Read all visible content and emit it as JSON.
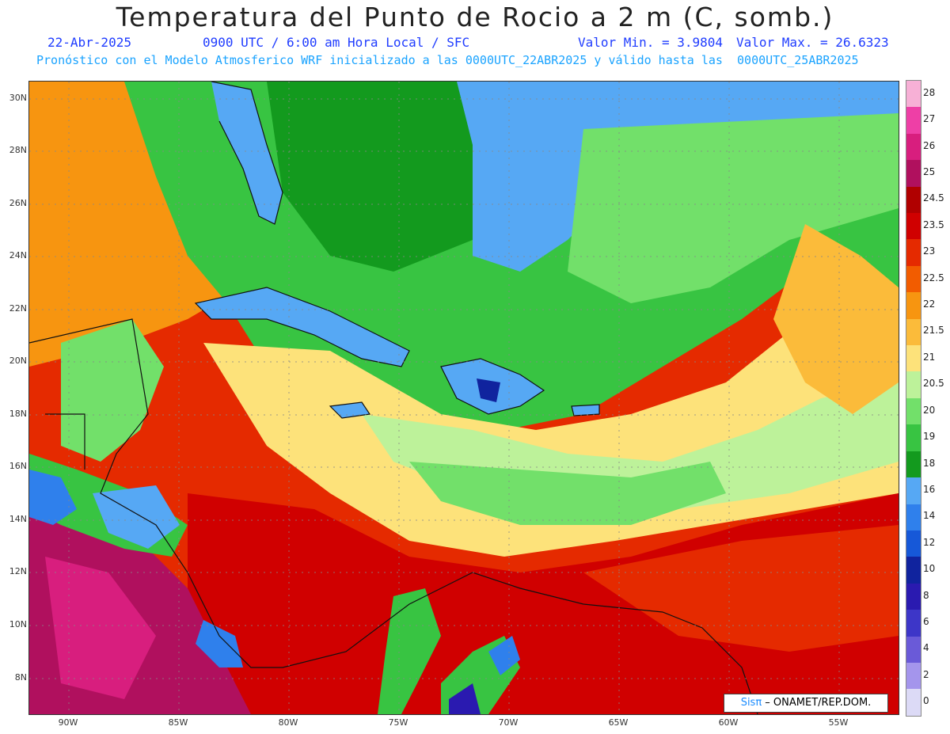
{
  "title": "Temperatura del Punto de Rocio a 2 m (C, somb.)",
  "date": "22-Abr-2025",
  "time": "0900 UTC / 6:00 am Hora Local / SFC",
  "min_label": "Valor Min. = 3.9804",
  "max_label": "Valor Max. = 26.6323",
  "model_line": "Pronóstico con el Modelo Atmosferico WRF inicializado a las 0000UTC_22ABR2025 y válido hasta las  0000UTC_25ABR2025",
  "lat_labels": [
    "30N",
    "28N",
    "26N",
    "24N",
    "22N",
    "20N",
    "18N",
    "16N",
    "14N",
    "12N",
    "10N",
    "8N"
  ],
  "lon_labels": [
    "90W",
    "85W",
    "80W",
    "75W",
    "70W",
    "65W",
    "60W",
    "55W"
  ],
  "colorbar": {
    "labels": [
      "28",
      "27",
      "26",
      "25",
      "24.5",
      "23.5",
      "23",
      "22.5",
      "22",
      "21.5",
      "21",
      "20.5",
      "20",
      "19",
      "18",
      "16",
      "14",
      "12",
      "10",
      "8",
      "6",
      "4",
      "2",
      "0"
    ],
    "colors": [
      "#f7b0d6",
      "#ee3fa6",
      "#d81e7e",
      "#b0105e",
      "#b00000",
      "#d00000",
      "#e52a00",
      "#f25c00",
      "#f79510",
      "#fbbb3a",
      "#fde27a",
      "#bdf29a",
      "#72e06a",
      "#38c442",
      "#139a1e",
      "#56a8f4",
      "#2f80ec",
      "#1658d8",
      "#10239e",
      "#2a1ab0",
      "#3d36c8",
      "#6a5ad8",
      "#a495ec",
      "#dcdaf6"
    ]
  },
  "credit_prefix": "Sisπ",
  "credit_text": " – ONAMET/REP.DOM."
}
